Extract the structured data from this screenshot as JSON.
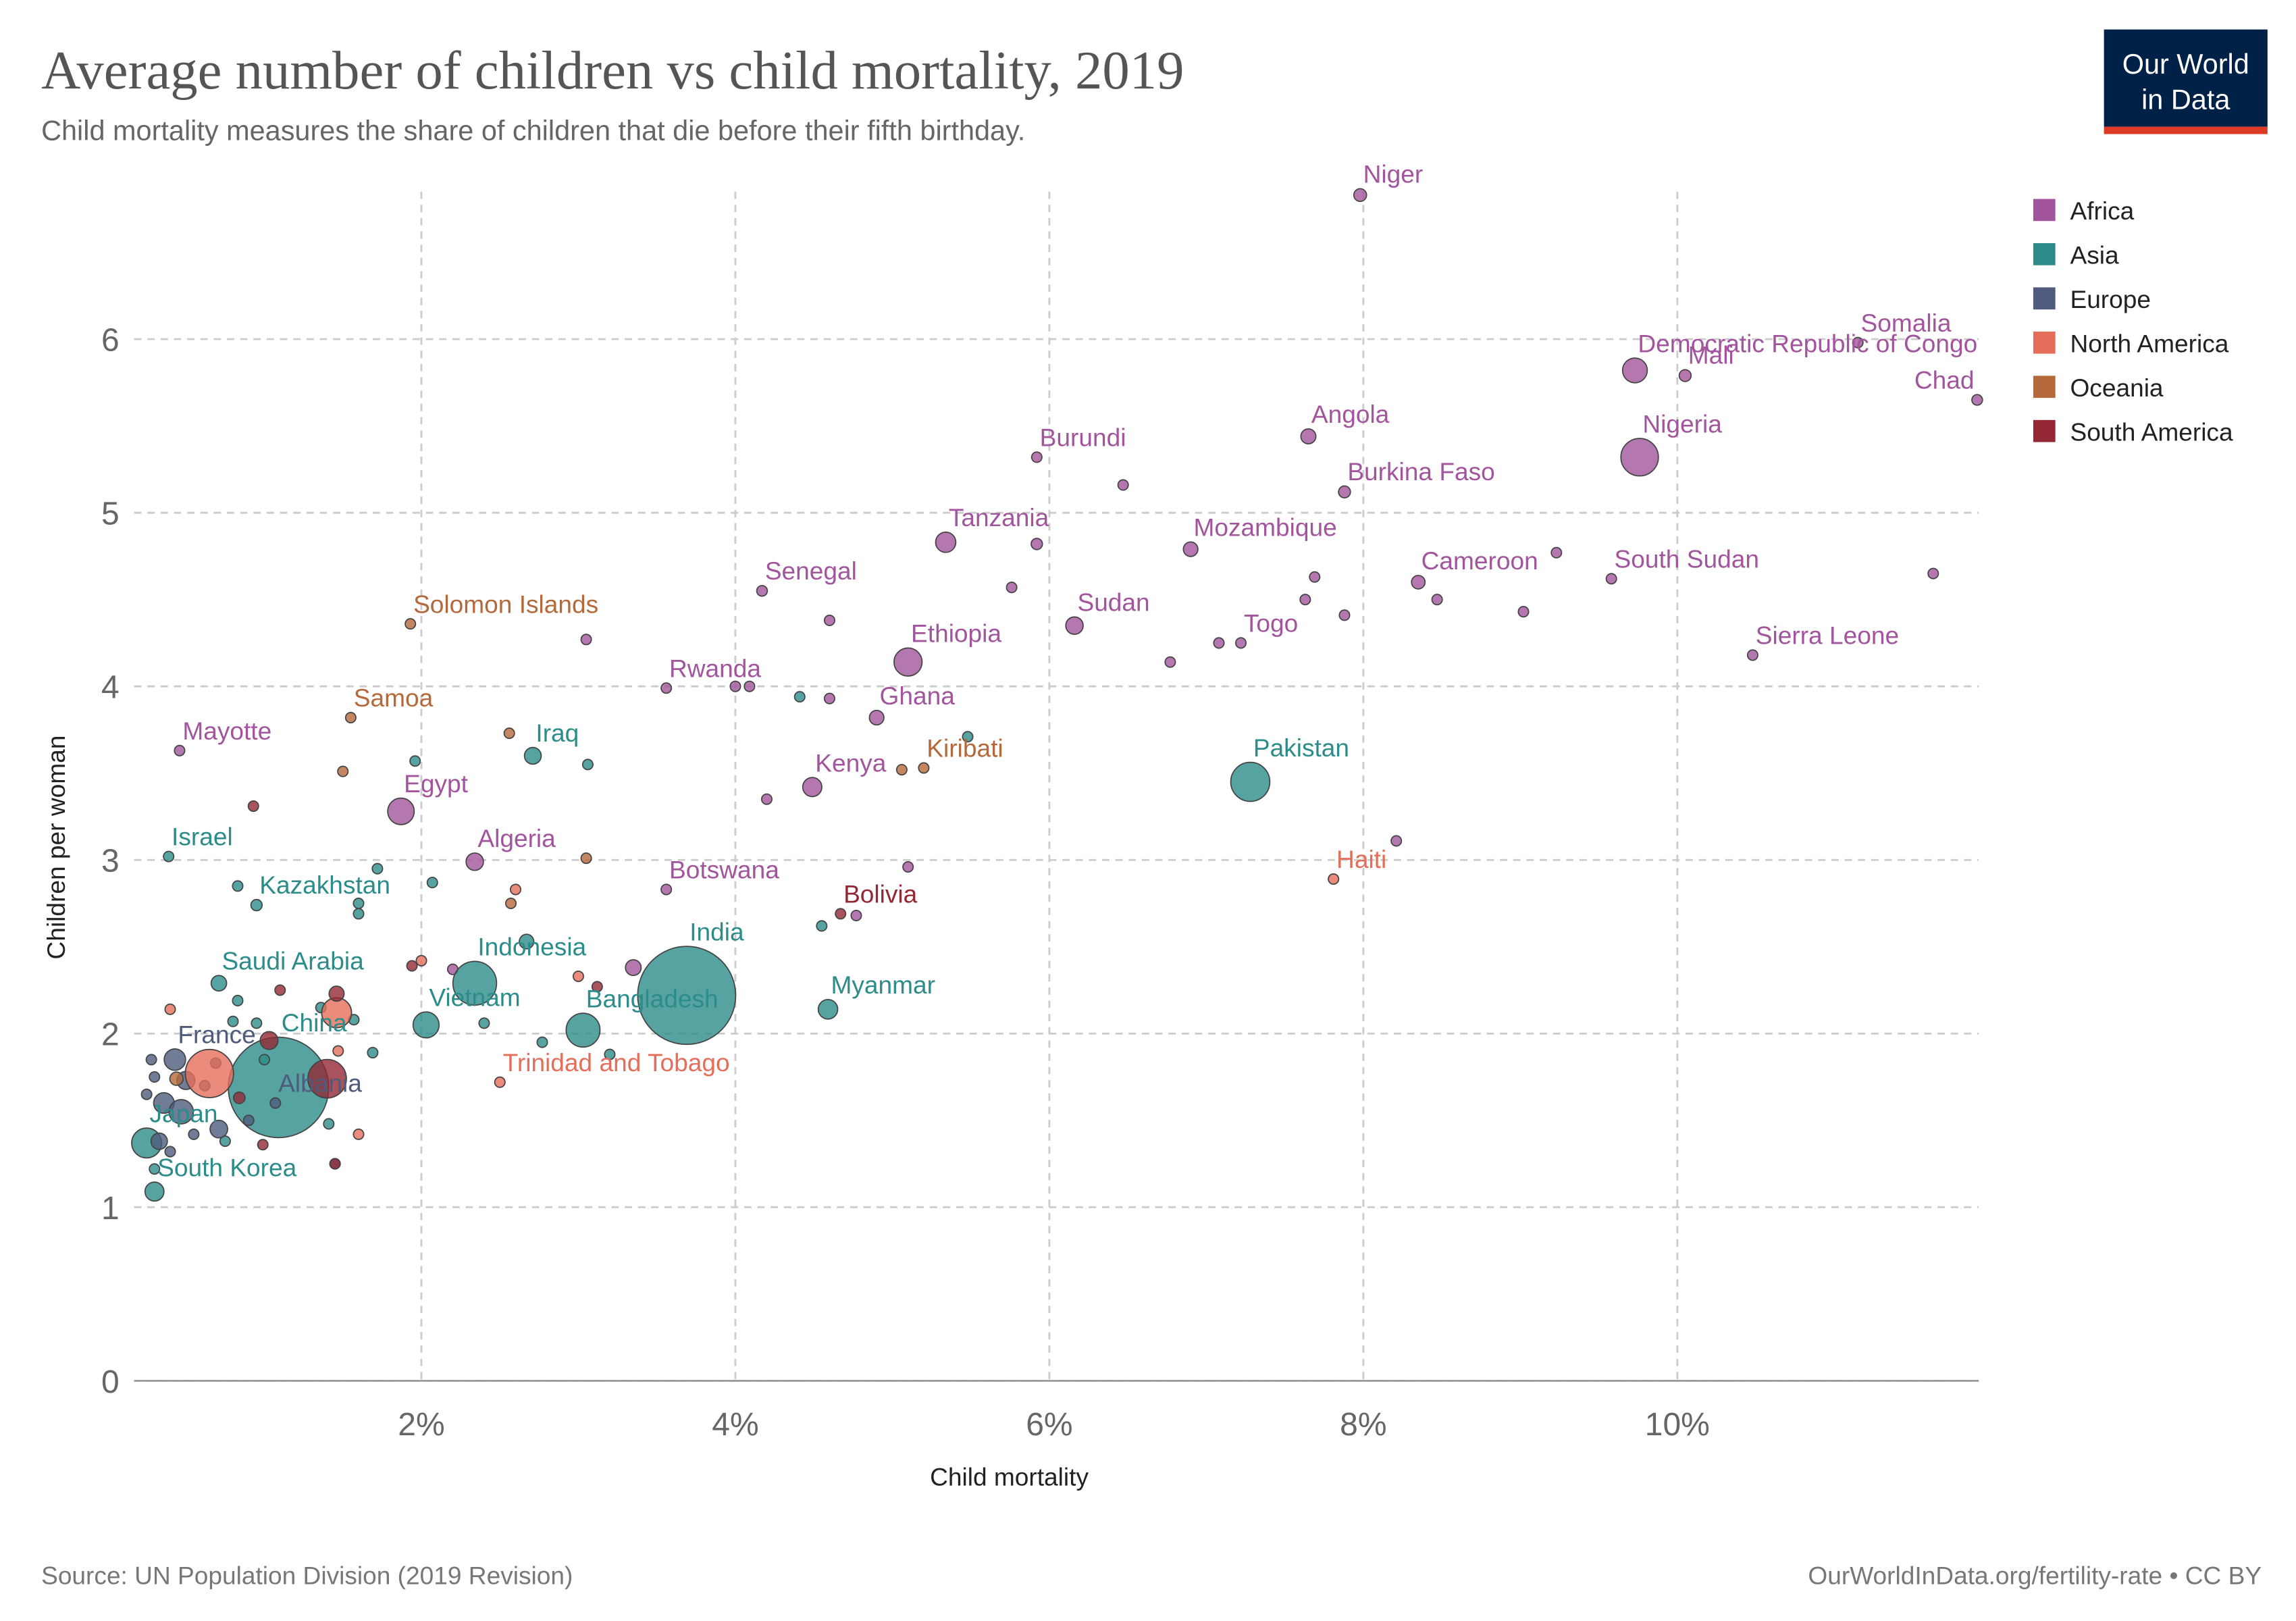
{
  "logo": [
    "Our World",
    "in Data"
  ],
  "chart_data": {
    "type": "bubble",
    "title": "Average number of children vs child mortality, 2019",
    "subtitle": "Child mortality measures the share of children that die before their fifth birthday.",
    "xlabel": "Child mortality",
    "ylabel": "Children per woman",
    "source": "Source: UN Population Division (2019 Revision)",
    "url": "OurWorldInData.org/fertility-rate • CC BY",
    "xlim": [
      0.17,
      11.92
    ],
    "ylim": [
      0,
      6.85
    ],
    "xticks": [
      {
        "value": 2,
        "label": "2%"
      },
      {
        "value": 4,
        "label": "4%"
      },
      {
        "value": 6,
        "label": "6%"
      },
      {
        "value": 8,
        "label": "8%"
      },
      {
        "value": 10,
        "label": "10%"
      }
    ],
    "yticks": [
      0,
      1,
      2,
      3,
      4,
      5,
      6
    ],
    "grid": true,
    "legend": "right",
    "series": [
      {
        "name": "Africa",
        "color": "#a2559c",
        "x": [
          7.98,
          9.73,
          10.05,
          11.15,
          11.91,
          7.65,
          9.76,
          7.88,
          5.92,
          5.34,
          6.9,
          4.17,
          8.35,
          9.58,
          6.16,
          7.22,
          5.1,
          10.48,
          3.56,
          4.9,
          4.49,
          0.46,
          1.87,
          2.34,
          3.56,
          6.47,
          5.76,
          4.6,
          3.05,
          4.0,
          4.09,
          4.6,
          5.92,
          7.69,
          7.63,
          7.88,
          8.47,
          9.23,
          9.02,
          11.63,
          6.77,
          7.08,
          4.2,
          5.1,
          4.77,
          8.21,
          3.35,
          2.2
        ],
        "values": [
          6.83,
          5.82,
          5.79,
          5.98,
          5.65,
          5.44,
          5.32,
          5.12,
          5.32,
          4.83,
          4.79,
          4.55,
          4.6,
          4.62,
          4.35,
          4.25,
          4.14,
          4.18,
          3.99,
          3.82,
          3.42,
          3.63,
          3.28,
          2.99,
          2.83,
          5.16,
          4.57,
          4.38,
          4.27,
          4.0,
          4.0,
          3.93,
          4.82,
          4.63,
          4.5,
          4.41,
          4.5,
          4.77,
          4.43,
          4.65,
          4.14,
          4.25,
          3.35,
          2.96,
          2.68,
          3.11,
          2.38,
          2.37
        ],
        "sizes": [
          23,
          87,
          20,
          15,
          16,
          32,
          200,
          20,
          11,
          58,
          30,
          16,
          26,
          11,
          43,
          8,
          112,
          8,
          12,
          30,
          52,
          0.3,
          100,
          43,
          2.3,
          3,
          5,
          3,
          1,
          5,
          2,
          1.5,
          18,
          5,
          3,
          2,
          12,
          5,
          2,
          2,
          2,
          3,
          1.5,
          1.2,
          1,
          1.5,
          35,
          10
        ],
        "labels": [
          "Niger",
          "Democratic Republic of Congo",
          "Mali",
          "Somalia",
          "Chad",
          "Angola",
          "Nigeria",
          "Burkina Faso",
          "Burundi",
          "Tanzania",
          "Mozambique",
          "Senegal",
          "Cameroon",
          "South Sudan",
          "Sudan",
          "Togo",
          "Ethiopia",
          "Sierra Leone",
          "Rwanda",
          "Ghana",
          "Kenya",
          "Mayotte",
          "Egypt",
          "Algeria",
          "Botswana",
          null,
          null,
          null,
          null,
          null,
          null,
          null,
          null,
          null,
          null,
          null,
          null,
          null,
          null,
          null,
          null,
          null,
          null,
          null,
          null,
          null,
          null,
          null
        ]
      },
      {
        "name": "Asia",
        "color": "#2c8c89",
        "x": [
          3.69,
          1.09,
          7.28,
          3.03,
          2.34,
          2.03,
          4.59,
          2.71,
          0.95,
          0.39,
          0.71,
          0.25,
          0.3,
          5.48,
          4.41,
          3.06,
          1.96,
          1.72,
          2.07,
          1.6,
          1.6,
          0.83,
          4.55,
          2.67,
          2.4,
          2.77,
          3.2,
          0.83,
          0.8,
          1.36,
          1.69,
          0.95,
          1.57,
          0.75,
          1.41,
          1.0,
          0.3
        ],
        "values": [
          2.22,
          1.69,
          3.45,
          2.02,
          2.29,
          2.05,
          2.14,
          3.6,
          2.74,
          3.02,
          2.29,
          1.37,
          1.09,
          3.71,
          3.94,
          3.55,
          3.57,
          2.95,
          2.87,
          2.75,
          2.69,
          2.85,
          2.62,
          2.53,
          2.06,
          1.95,
          1.88,
          2.19,
          2.07,
          2.15,
          1.89,
          2.06,
          2.08,
          1.38,
          1.48,
          1.85,
          1.22
        ],
        "sizes": [
          1366,
          1434,
          217,
          163,
          271,
          96,
          54,
          40,
          18,
          8.5,
          34,
          127,
          51,
          3,
          1,
          2,
          1,
          2,
          1,
          1,
          1,
          1,
          1,
          30,
          1,
          1,
          3,
          3,
          1,
          10,
          5,
          2,
          1,
          2,
          2,
          5,
          1
        ],
        "labels": [
          "India",
          "China",
          "Pakistan",
          "Bangladesh",
          "Indonesia",
          "Vietnam",
          "Myanmar",
          "Iraq",
          "Kazakhstan",
          "Israel",
          "Saudi Arabia",
          "Japan",
          "South Korea",
          null,
          null,
          null,
          null,
          null,
          null,
          null,
          null,
          null,
          null,
          null,
          null,
          null,
          null,
          null,
          null,
          null,
          null,
          null,
          null,
          null,
          null,
          null,
          null
        ]
      },
      {
        "name": "Europe",
        "color": "#4e5b7c",
        "x": [
          0.43,
          1.07,
          0.5,
          0.36,
          0.47,
          0.69,
          0.71,
          0.3,
          0.25,
          0.33,
          0.55,
          0.9,
          1.45,
          0.4,
          0.62,
          0.28
        ],
        "values": [
          1.85,
          1.6,
          1.73,
          1.6,
          1.55,
          1.83,
          1.45,
          1.75,
          1.65,
          1.38,
          1.42,
          1.5,
          1.25,
          1.32,
          1.7,
          1.85
        ],
        "sizes": [
          65,
          2.9,
          46,
          60,
          84,
          10,
          44,
          5,
          10,
          38,
          9,
          4,
          2,
          5,
          7,
          3
        ],
        "labels": [
          "France",
          "Albania",
          null,
          null,
          null,
          null,
          null,
          null,
          null,
          null,
          null,
          null,
          null,
          null,
          null,
          null
        ]
      },
      {
        "name": "North America",
        "color": "#e56e5a",
        "x": [
          7.81,
          2.5,
          0.65,
          2.6,
          3.0,
          1.46,
          1.6,
          1.47,
          0.4,
          2.0
        ],
        "values": [
          2.89,
          1.72,
          1.77,
          2.83,
          2.33,
          2.12,
          1.42,
          1.9,
          2.14,
          2.42
        ],
        "sizes": [
          11,
          1.4,
          330,
          4,
          2,
          127,
          1,
          3,
          1,
          3
        ],
        "labels": [
          "Haiti",
          "Trinidad and Tobago",
          null,
          null,
          null,
          null,
          null,
          null,
          null,
          null
        ]
      },
      {
        "name": "Oceania",
        "color": "#b5693b",
        "x": [
          1.93,
          1.55,
          5.2,
          1.5,
          2.56,
          3.05,
          2.57,
          5.06,
          0.44
        ],
        "values": [
          4.36,
          3.82,
          3.53,
          3.51,
          3.73,
          3.01,
          2.75,
          3.52,
          1.74
        ],
        "sizes": [
          0.7,
          0.2,
          0.1,
          0.1,
          0.1,
          0.1,
          0.3,
          0.1,
          25
        ],
        "labels": [
          "Solomon Islands",
          "Samoa",
          "Kiribati",
          null,
          null,
          null,
          null,
          null,
          null
        ]
      },
      {
        "name": "South America",
        "color": "#932834",
        "x": [
          4.67,
          0.93,
          1.4,
          1.46,
          0.84,
          1.03,
          1.1,
          1.94,
          3.12,
          0.99,
          1.45
        ],
        "values": [
          2.69,
          3.31,
          1.74,
          2.23,
          1.63,
          1.96,
          2.25,
          2.39,
          2.27,
          1.36,
          1.25
        ],
        "sizes": [
          11.5,
          0.3,
          211,
          32,
          19,
          45,
          3,
          0.8,
          1,
          3,
          1
        ],
        "labels": [
          "Bolivia",
          null,
          null,
          null,
          null,
          null,
          null,
          null,
          null,
          null,
          null
        ]
      }
    ]
  }
}
